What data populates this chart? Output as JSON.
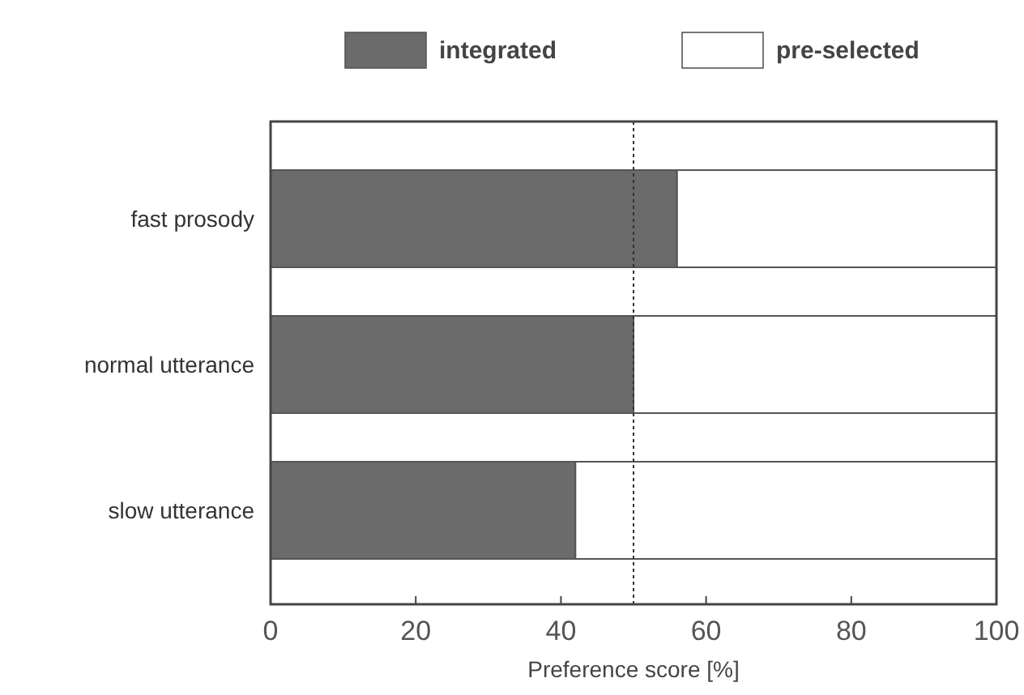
{
  "chart_data": {
    "type": "bar",
    "orientation": "horizontal",
    "stacked": true,
    "categories": [
      "fast prosody",
      "normal utterance",
      "slow utterance"
    ],
    "series": [
      {
        "name": "integrated",
        "color": "#6b6b6b",
        "values": [
          56,
          50,
          42
        ]
      },
      {
        "name": "pre-selected",
        "color": "#ffffff",
        "values": [
          44,
          50,
          58
        ]
      }
    ],
    "xlabel": "Preference score [%]",
    "xlim": [
      0,
      100
    ],
    "xticks": [
      0,
      20,
      40,
      60,
      80,
      100
    ],
    "ref_lines": [
      {
        "axis": "x",
        "value": 50,
        "line_style": "dotted"
      }
    ],
    "legend": "top",
    "grid": false
  }
}
